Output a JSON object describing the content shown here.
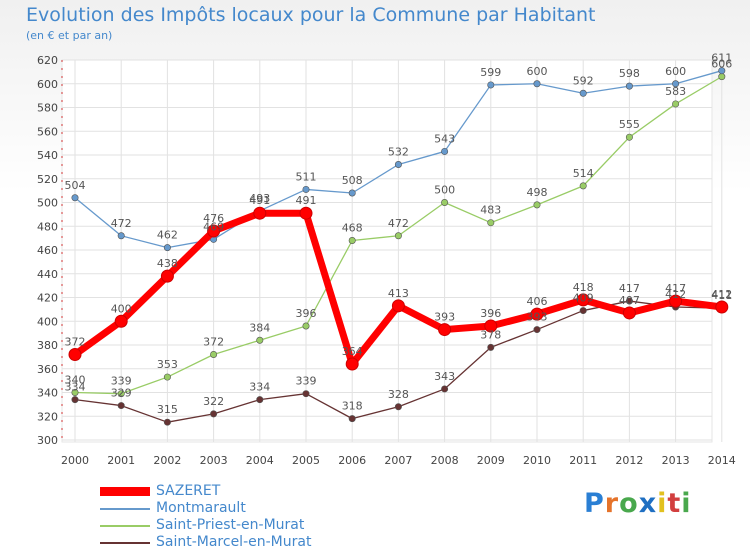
{
  "chart_data": {
    "type": "line",
    "title": "Evolution des Impôts locaux pour la Commune par Habitant",
    "subtitle": "(en € et par an)",
    "x": [
      "2000",
      "2001",
      "2002",
      "2003",
      "2004",
      "2005",
      "2006",
      "2007",
      "2008",
      "2009",
      "2010",
      "2011",
      "2012",
      "2013",
      "2014"
    ],
    "ylim": [
      300,
      620
    ],
    "yticks": [
      300,
      320,
      340,
      360,
      380,
      400,
      420,
      440,
      460,
      480,
      500,
      520,
      540,
      560,
      580,
      600,
      620
    ],
    "grid": true,
    "legend": "bottom-left",
    "series": [
      {
        "name": "SAZERET",
        "color": "#ff0000",
        "values": [
          372,
          400,
          438,
          476,
          491,
          491,
          364,
          413,
          393,
          396,
          406,
          418,
          407,
          417,
          412
        ]
      },
      {
        "name": "Montmarault",
        "color": "#6699cc",
        "values": [
          504,
          472,
          462,
          469,
          493,
          511,
          508,
          532,
          543,
          599,
          600,
          592,
          598,
          600,
          611
        ]
      },
      {
        "name": "Saint-Priest-en-Murat",
        "color": "#99cc66",
        "values": [
          340,
          339,
          353,
          372,
          384,
          396,
          468,
          472,
          500,
          483,
          498,
          514,
          555,
          583,
          606
        ]
      },
      {
        "name": "Saint-Marcel-en-Murat",
        "color": "#663333",
        "values": [
          334,
          329,
          315,
          322,
          334,
          339,
          318,
          328,
          343,
          378,
          393,
          409,
          417,
          412,
          411
        ]
      }
    ]
  },
  "logo": {
    "text": "Proxiti"
  }
}
